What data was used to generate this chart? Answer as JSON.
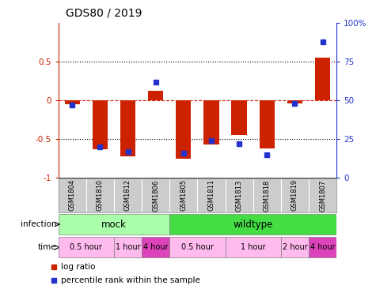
{
  "title": "GDS80 / 2019",
  "samples": [
    "GSM1804",
    "GSM1810",
    "GSM1812",
    "GSM1806",
    "GSM1805",
    "GSM1811",
    "GSM1813",
    "GSM1818",
    "GSM1819",
    "GSM1807"
  ],
  "log_ratio": [
    -0.05,
    -0.63,
    -0.72,
    0.12,
    -0.75,
    -0.57,
    -0.45,
    -0.62,
    -0.04,
    0.55
  ],
  "percentile": [
    47,
    20,
    17,
    62,
    16,
    24,
    22,
    15,
    48,
    88
  ],
  "bar_color": "#cc2200",
  "dot_color": "#2233cc",
  "ylim": [
    -1,
    1
  ],
  "yticks_left": [
    -1,
    -0.5,
    0,
    0.5
  ],
  "ytick_labels_left": [
    "-1",
    "-0.5",
    "0",
    "0.5"
  ],
  "yticks_right": [
    0,
    25,
    50,
    75,
    100
  ],
  "ytick_labels_right": [
    "0",
    "25",
    "50",
    "75",
    "100%"
  ],
  "hlines": [
    -0.5,
    0.0,
    0.5
  ],
  "hline_styles": [
    "dotted",
    "dashed",
    "dotted"
  ],
  "mock_color": "#aaffaa",
  "wildtype_color": "#44dd44",
  "time_groups": [
    {
      "label": "0.5 hour",
      "start": 0,
      "end": 2,
      "color": "#ffbbee"
    },
    {
      "label": "1 hour",
      "start": 2,
      "end": 3,
      "color": "#ffbbee"
    },
    {
      "label": "4 hour",
      "start": 3,
      "end": 4,
      "color": "#dd44bb"
    },
    {
      "label": "0.5 hour",
      "start": 4,
      "end": 6,
      "color": "#ffbbee"
    },
    {
      "label": "1 hour",
      "start": 6,
      "end": 8,
      "color": "#ffbbee"
    },
    {
      "label": "2 hour",
      "start": 8,
      "end": 9,
      "color": "#ffbbee"
    },
    {
      "label": "4 hour",
      "start": 9,
      "end": 10,
      "color": "#dd44bb"
    }
  ],
  "infection_label": "infection",
  "time_label": "time",
  "legend_log": "log ratio",
  "legend_pct": "percentile rank within the sample",
  "background_color": "#ffffff",
  "label_bg": "#cccccc"
}
